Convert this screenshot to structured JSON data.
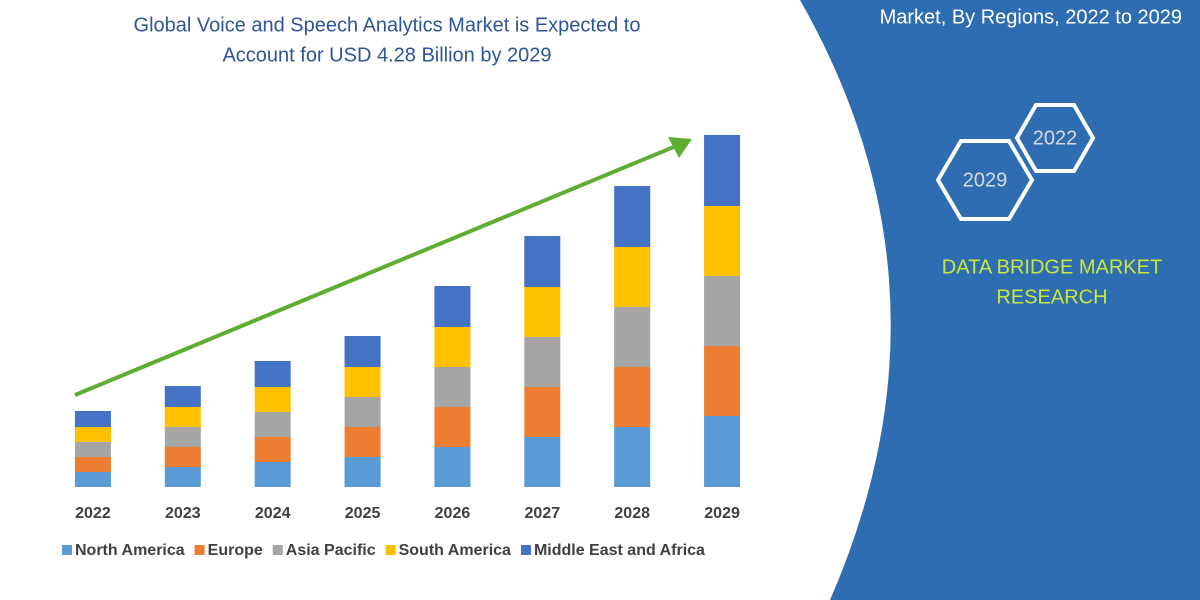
{
  "chart_data": {
    "type": "stacked-bar",
    "title": [
      "Global Voice and Speech Analytics Market is Expected to",
      "Account for USD 4.28 Billion by 2029"
    ],
    "categories": [
      "2022",
      "2023",
      "2024",
      "2025",
      "2026",
      "2027",
      "2028",
      "2029"
    ],
    "series": [
      {
        "name": "North America",
        "color": "#5b9bd5",
        "values": [
          15,
          20,
          25,
          30,
          40,
          50,
          60,
          71
        ]
      },
      {
        "name": "Europe",
        "color": "#ed7d31",
        "values": [
          15,
          20,
          25,
          30,
          40,
          50,
          60,
          70
        ]
      },
      {
        "name": "Asia Pacific",
        "color": "#a5a5a5",
        "values": [
          15,
          20,
          25,
          30,
          40,
          50,
          60,
          70
        ]
      },
      {
        "name": "South America",
        "color": "#ffc000",
        "values": [
          15,
          20,
          25,
          30,
          40,
          50,
          60,
          70
        ]
      },
      {
        "name": "Middle East and Africa",
        "color": "#4472c4",
        "values": [
          16,
          21,
          26,
          31,
          41,
          51,
          61,
          71
        ]
      }
    ]
  },
  "side_panel": {
    "heading": "Market, By Regions, 2022 to 2029",
    "badges": [
      "2022",
      "2029"
    ],
    "brand": [
      "DATA BRIDGE MARKET",
      "RESEARCH"
    ]
  }
}
